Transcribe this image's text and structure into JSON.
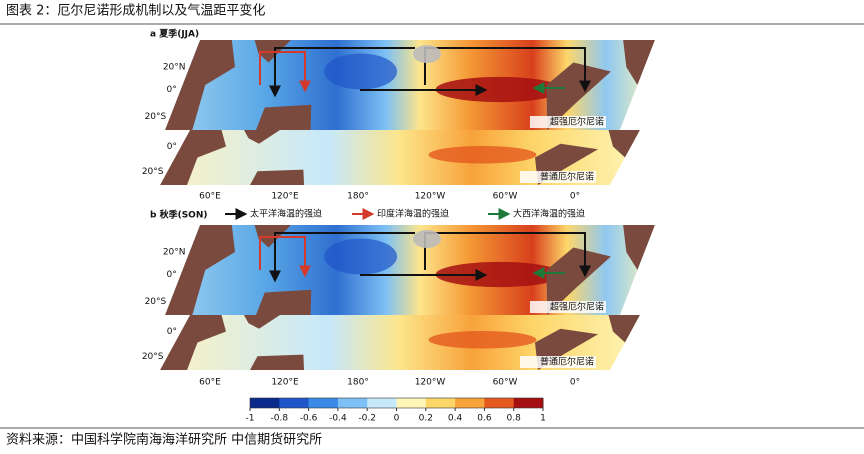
{
  "title": "图表 2：厄尔尼诺形成机制以及气温距平变化",
  "panels": [
    {
      "label": "a 夏季(JJA)",
      "maps": [
        {
          "label": "超强厄尔尼诺",
          "lat_labels": [
            "20°N",
            "0°",
            "20°S"
          ]
        },
        {
          "label": "普通厄尔尼诺",
          "lat_labels": [
            "0°",
            "20°S"
          ]
        }
      ],
      "lon_labels": [
        "60°E",
        "120°E",
        "180°",
        "120°W",
        "60°W",
        "0°"
      ]
    },
    {
      "label": "b 秋季(SON)",
      "maps": [
        {
          "label": "超强厄尔尼诺",
          "lat_labels": [
            "20°N",
            "0°",
            "20°S"
          ]
        },
        {
          "label": "普通厄尔尼诺",
          "lat_labels": [
            "0°",
            "20°S"
          ]
        }
      ],
      "lon_labels": [
        "60°E",
        "120°E",
        "180°",
        "120°W",
        "60°W",
        "0°"
      ]
    }
  ],
  "legend": [
    {
      "name": "太平洋海温的强迫",
      "color": "#111111"
    },
    {
      "name": "印度洋海温的强迫",
      "color": "#d43a2c"
    },
    {
      "name": "大西洋海温的强迫",
      "color": "#1f7a3a"
    }
  ],
  "colorbar": {
    "ticks": [
      -1,
      -0.8,
      -0.6,
      -0.4,
      -0.2,
      0,
      0.2,
      0.4,
      0.6,
      0.8,
      1
    ],
    "colors": [
      "#0a2a8c",
      "#1f55c8",
      "#3a8ae8",
      "#7cc0f5",
      "#c6e8fb",
      "#fdf6b8",
      "#fdd66a",
      "#f8a23a",
      "#e45a1e",
      "#a50f12"
    ]
  },
  "source": "资料来源：中国科学院南海海洋研究所 中信期货研究所"
}
